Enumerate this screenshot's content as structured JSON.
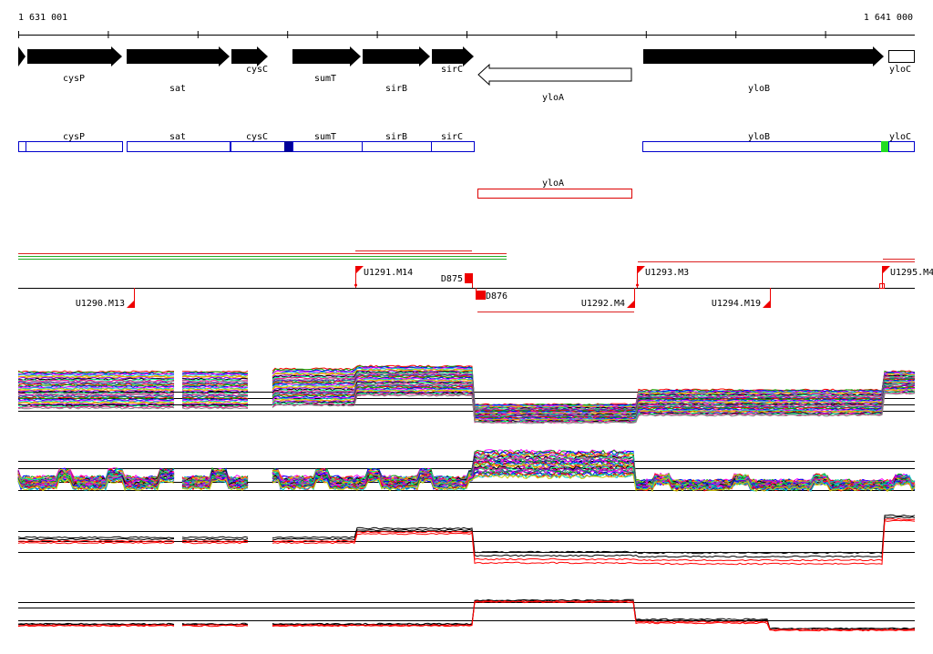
{
  "coordinates": {
    "start_label": "1 631 001",
    "end_label": "1 641 000"
  },
  "colors": {
    "gene_fill": "#000000",
    "gene_outline": "#000000",
    "utr_outline": "#0000cc",
    "utr_dark_mark": "#000099",
    "utr_green_mark": "#22dd22",
    "antisense_outline": "#dd0000",
    "promoter_red": "#ee0000",
    "upper_green": "#22aa22",
    "upper_red": "#dd2222",
    "background": "#ffffff"
  },
  "genes": [
    {
      "name": "cysP",
      "strand": "+",
      "filled": true
    },
    {
      "name": "sat",
      "strand": "+",
      "filled": true
    },
    {
      "name": "cysC",
      "strand": "+",
      "filled": true
    },
    {
      "name": "sumT",
      "strand": "+",
      "filled": true
    },
    {
      "name": "sirB",
      "strand": "+",
      "filled": true
    },
    {
      "name": "sirC",
      "strand": "+",
      "filled": true
    },
    {
      "name": "yloA",
      "strand": "-",
      "filled": false
    },
    {
      "name": "yloB",
      "strand": "+",
      "filled": true
    },
    {
      "name": "yloC",
      "strand": "+",
      "filled": false
    }
  ],
  "sense_segments": [
    {
      "label": "cysP"
    },
    {
      "label": "sat"
    },
    {
      "label": "cysC"
    },
    {
      "label": "sumT"
    },
    {
      "label": "sirB"
    },
    {
      "label": "sirC"
    },
    {
      "label": "yloB"
    },
    {
      "label": "yloC"
    }
  ],
  "antisense_segments": [
    {
      "label": "yloA"
    }
  ],
  "transcription_units": [
    {
      "label": "U1291.M14",
      "strand": "+"
    },
    {
      "label": "D875",
      "strand": "+"
    },
    {
      "label": "U1293.M3",
      "strand": "+"
    },
    {
      "label": "U1295.M4",
      "strand": "+"
    },
    {
      "label": "U1290.M13",
      "strand": "-"
    },
    {
      "label": "D876",
      "strand": "-"
    },
    {
      "label": "U1292.M4",
      "strand": "-"
    },
    {
      "label": "U1294.M19",
      "strand": "-"
    }
  ],
  "tracks": [
    {
      "name": "sense-expression-profiles",
      "palette": [
        "#ff0000",
        "#00aa00",
        "#0000ff",
        "#ff00ff",
        "#00cccc",
        "#cccc00",
        "#ff8800",
        "#8800ff",
        "#000000",
        "#00ff88",
        "#ff0088",
        "#888888",
        "#6600cc",
        "#009966"
      ]
    },
    {
      "name": "antisense-expression-profiles",
      "palette": [
        "#ff00ff",
        "#00aa00",
        "#0000ff",
        "#ff0000",
        "#00cccc",
        "#cccc00",
        "#ff8800",
        "#8800ff",
        "#000000",
        "#00ff88",
        "#ff0088",
        "#888888",
        "#6600cc",
        "#009966"
      ]
    },
    {
      "name": "selected-sense-profiles",
      "palette": [
        "#000000",
        "#000000",
        "#ff0000",
        "#ff0000"
      ]
    },
    {
      "name": "selected-antisense-profiles",
      "palette": [
        "#000000",
        "#000000",
        "#ff0000",
        "#ff0000"
      ]
    }
  ]
}
